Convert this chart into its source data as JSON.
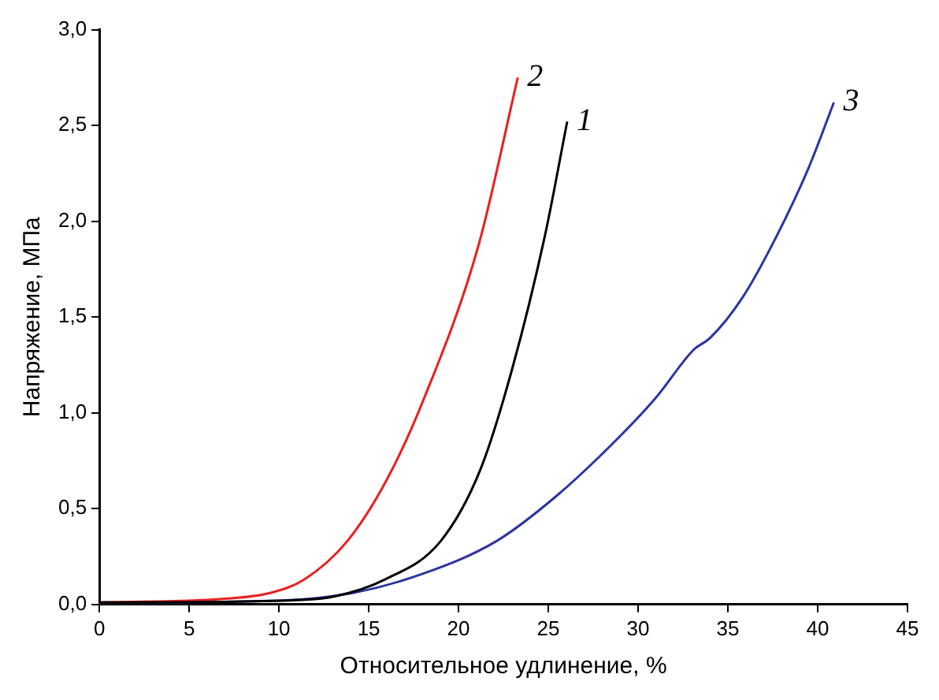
{
  "chart_data": {
    "type": "line",
    "xlabel": "Относительное удлинение, %",
    "ylabel": "Напряжение, МПа",
    "xlim": [
      0,
      45
    ],
    "xticks": [
      0,
      5,
      10,
      15,
      20,
      25,
      30,
      35,
      40,
      45
    ],
    "ylim": [
      0,
      3
    ],
    "yticks": [
      {
        "value": 0,
        "label": "0,0"
      },
      {
        "value": 0.5,
        "label": "0,5"
      },
      {
        "value": 1,
        "label": "1,0"
      },
      {
        "value": 1.5,
        "label": "1,5"
      },
      {
        "value": 2,
        "label": "2,0"
      },
      {
        "value": 2.5,
        "label": "2,5"
      },
      {
        "value": 3,
        "label": "3,0"
      }
    ],
    "grid": false,
    "legend": false,
    "marker": "none",
    "line_style": "solid",
    "series": [
      {
        "name": "1",
        "color": "#000000",
        "x": [
          0,
          10,
          13,
          15.9,
          19,
          21.2,
          22.96,
          24.8,
          26.05
        ],
        "values": [
          0.01,
          0.02,
          0.04,
          0.13,
          0.33,
          0.7,
          1.22,
          1.92,
          2.52
        ]
      },
      {
        "name": "2",
        "color": "#e8201e",
        "x": [
          0,
          7,
          9.5,
          11.4,
          13.8,
          16,
          18.1,
          21.1,
          23.3
        ],
        "values": [
          0.01,
          0.03,
          0.06,
          0.13,
          0.33,
          0.65,
          1.08,
          1.87,
          2.75
        ]
      },
      {
        "name": "3",
        "color": "#2a35a0",
        "x": [
          0,
          10,
          14.1,
          18,
          22.1,
          25.5,
          28.8,
          31,
          33.1,
          34,
          35.8,
          37.7,
          39.5,
          40.9
        ],
        "values": [
          0.01,
          0.02,
          0.06,
          0.16,
          0.33,
          0.57,
          0.86,
          1.08,
          1.33,
          1.39,
          1.6,
          1.92,
          2.28,
          2.62
        ]
      }
    ]
  }
}
